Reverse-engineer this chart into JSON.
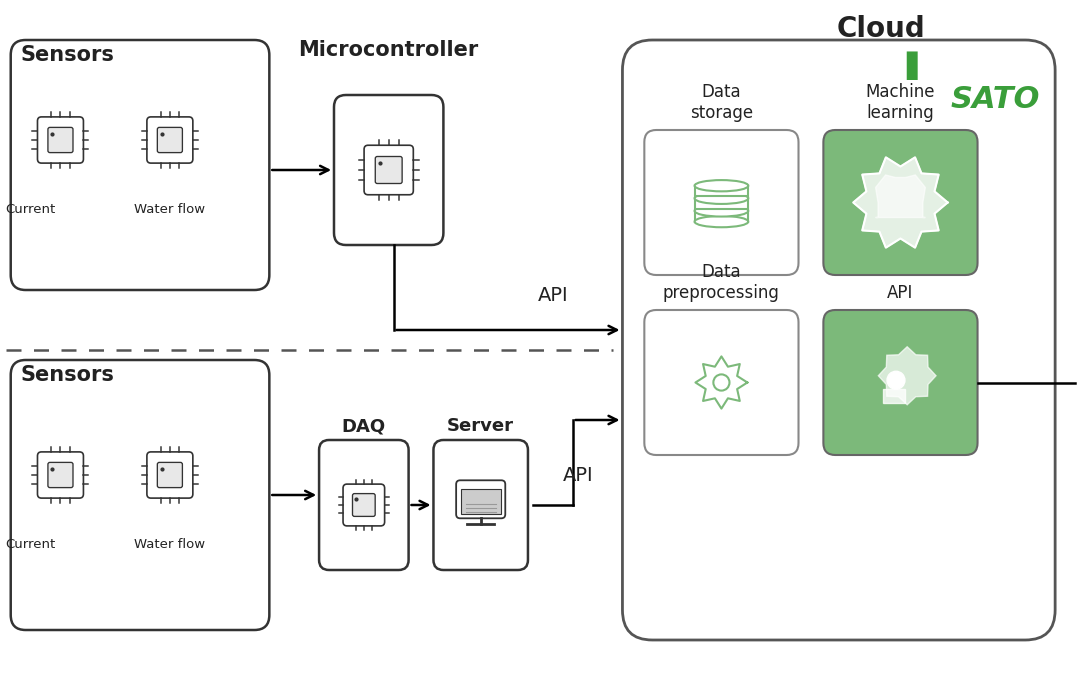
{
  "bg_color": "#ffffff",
  "title_cloud": "Cloud",
  "green_color": "#7cb97a",
  "green_dark": "#5a9e57",
  "sato_green": "#3a9e3a",
  "outline_color": "#333333",
  "text_color": "#222222",
  "labels": {
    "sensors_top": "Sensors",
    "sensors_bot": "Sensors",
    "microcontroller": "Microcontroller",
    "water_flow_top": "Water flow",
    "water_flow_bot": "Water flow",
    "daq": "DAQ",
    "server": "Server",
    "api_top": "API",
    "api_bot": "API",
    "data_storage": "Data\nstorage",
    "machine_learning": "Machine\nlearning",
    "data_preprocessing": "Data\npreprocessing",
    "api_cloud": "API",
    "cloud": "Cloud",
    "sato": "SATO"
  }
}
